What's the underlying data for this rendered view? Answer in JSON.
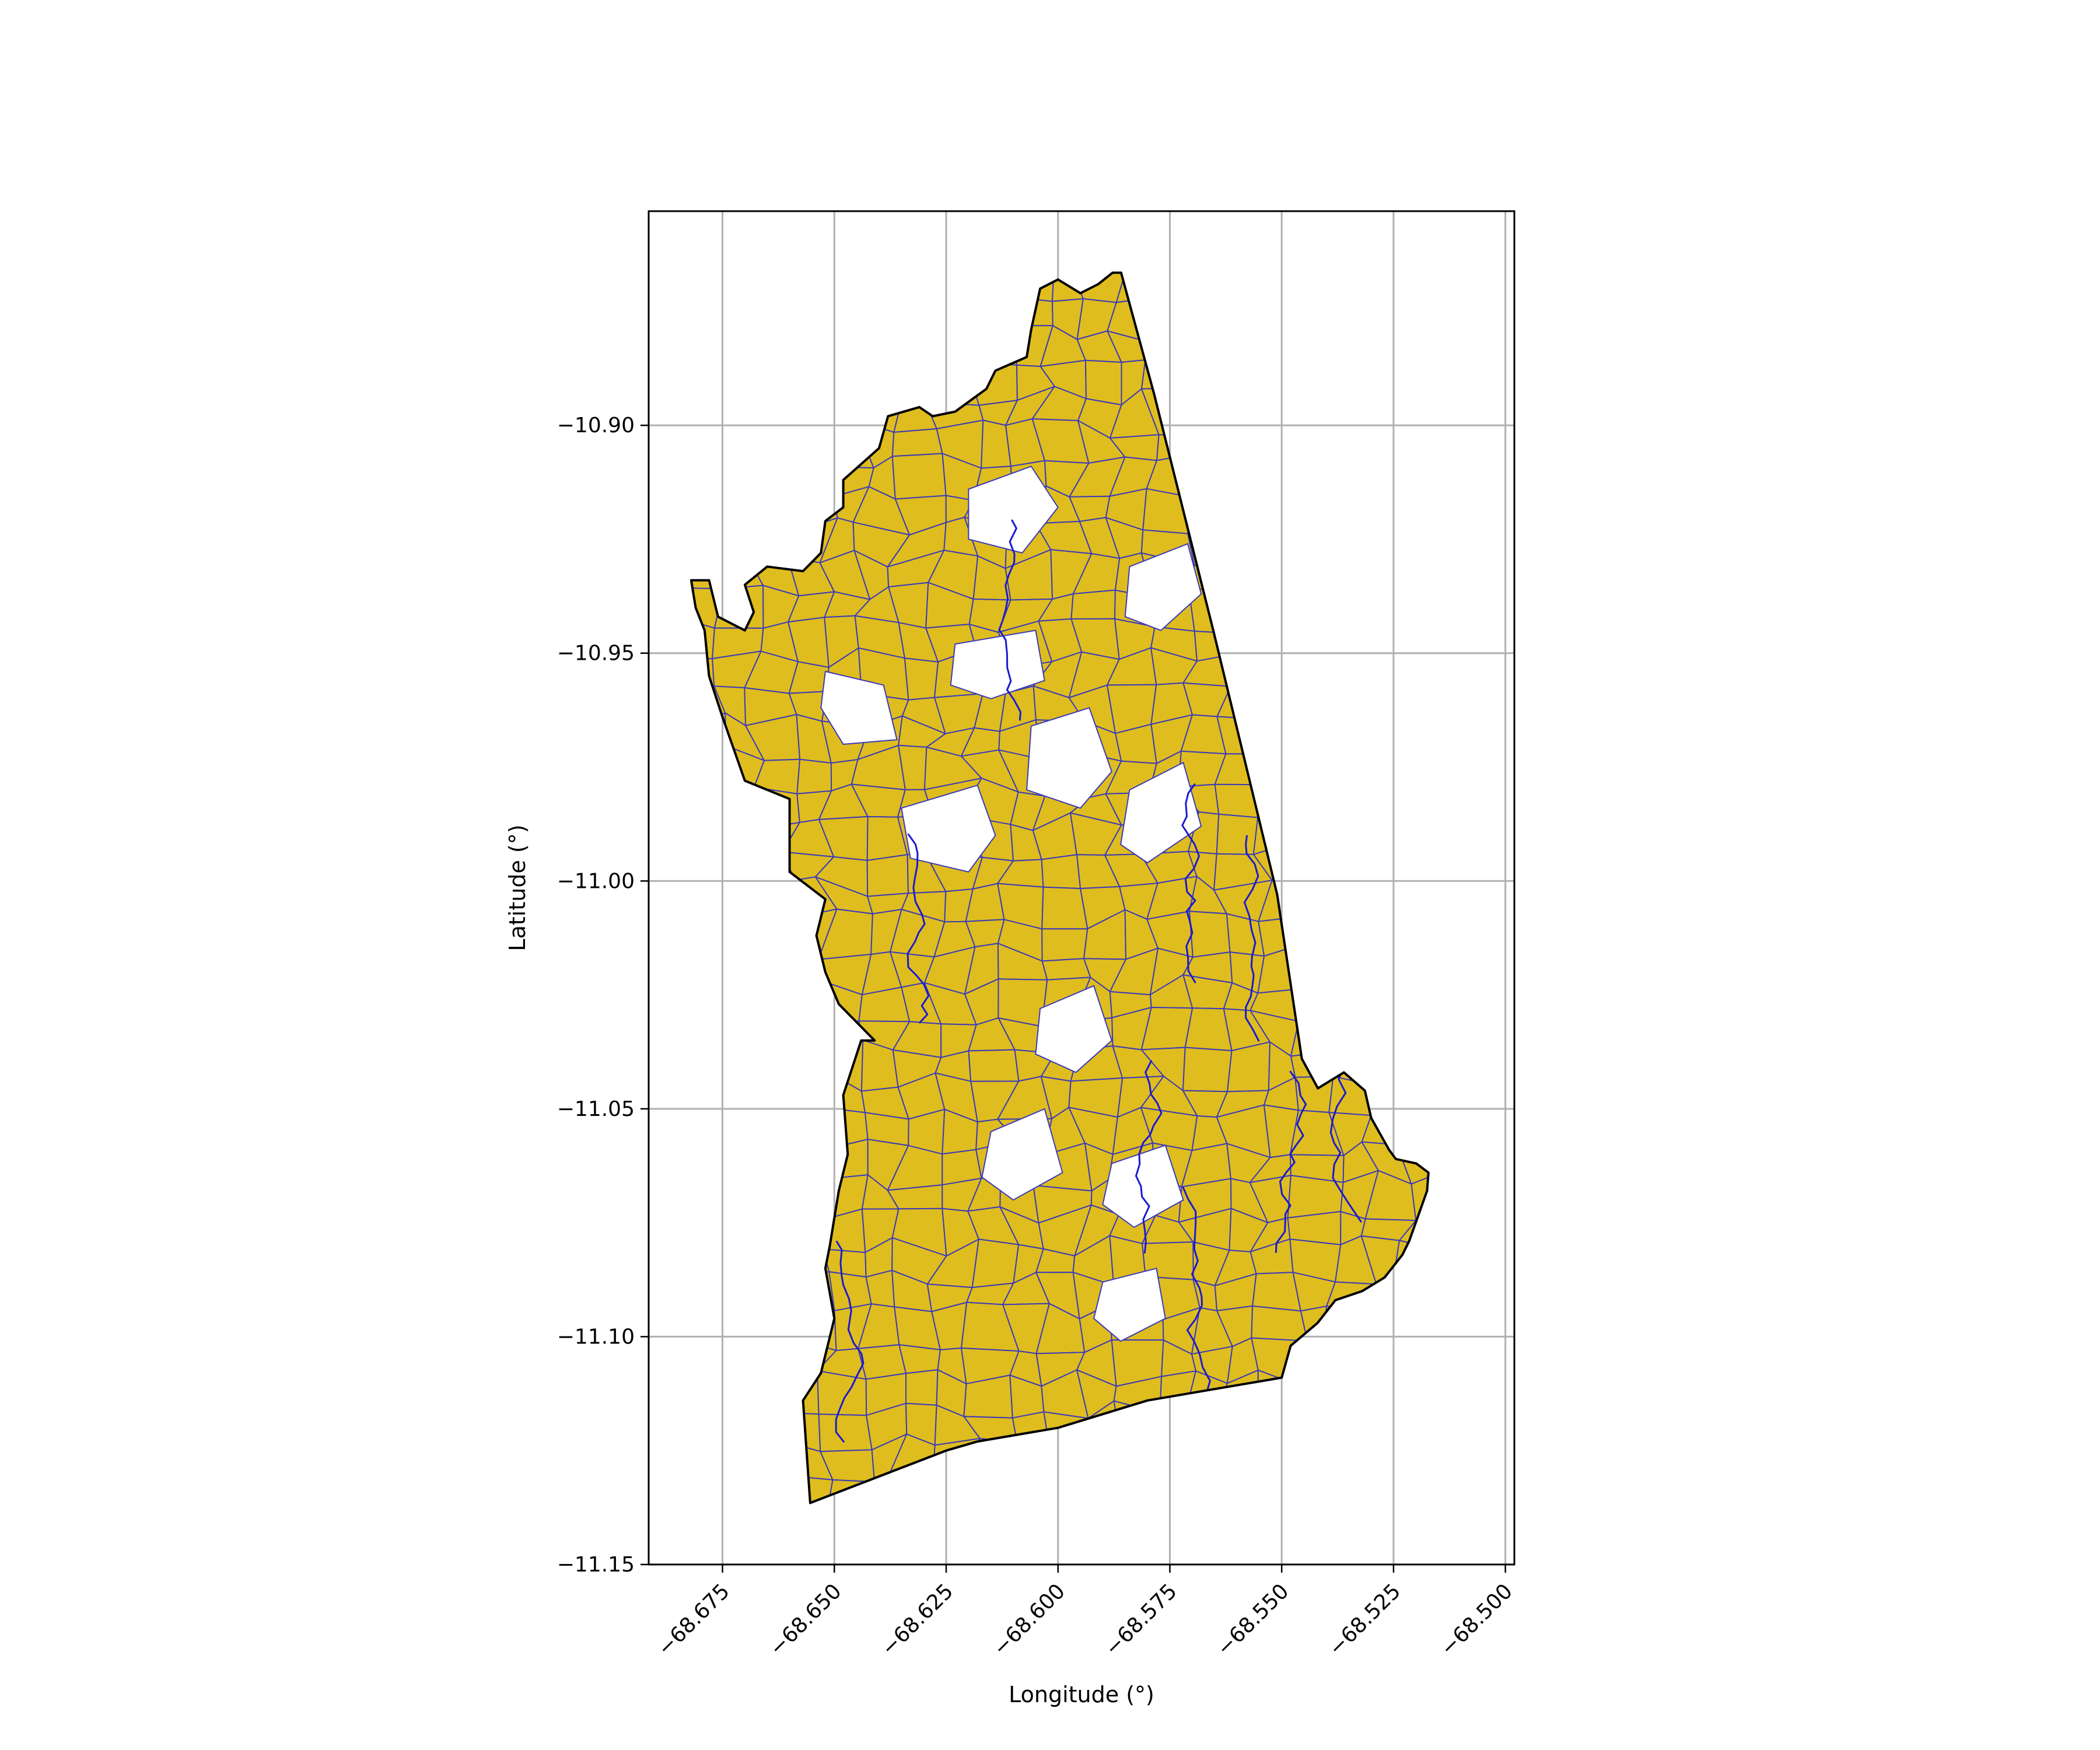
{
  "chart_data": {
    "type": "map",
    "xlabel": "Longitude (°)",
    "ylabel": "Latitude (°)",
    "xlim": [
      -68.6915,
      -68.498
    ],
    "ylim": [
      -11.15,
      -10.853
    ],
    "xticks": [
      -68.675,
      -68.65,
      -68.625,
      -68.6,
      -68.575,
      -68.55,
      -68.525,
      -68.5
    ],
    "xtick_labels": [
      "−68.675",
      "−68.650",
      "−68.625",
      "−68.600",
      "−68.575",
      "−68.550",
      "−68.525",
      "−68.500"
    ],
    "yticks": [
      -10.9,
      -10.95,
      -11.0,
      -11.05,
      -11.1,
      -11.15
    ],
    "ytick_labels": [
      "−10.90",
      "−10.95",
      "−11.00",
      "−11.05",
      "−11.10",
      "−11.15"
    ],
    "grid": true,
    "colors": {
      "parcel_fill": "#dfbd1e",
      "parcel_edge": "#3b3bb8",
      "river": "#1a1ad0",
      "boundary": "#000000",
      "grid": "#b0b0b0"
    },
    "boundary": [
      [
        -68.5878,
        -10.8665
      ],
      [
        -68.5859,
        -10.8665
      ],
      [
        -68.5785,
        -10.8932
      ],
      [
        -68.5653,
        -10.945
      ],
      [
        -68.551,
        -11.003
      ],
      [
        -68.5455,
        -11.039
      ],
      [
        -68.5419,
        -11.0455
      ],
      [
        -68.5361,
        -11.042
      ],
      [
        -68.5314,
        -11.046
      ],
      [
        -68.53,
        -11.052
      ],
      [
        -68.526,
        -11.059
      ],
      [
        -68.5245,
        -11.061
      ],
      [
        -68.5199,
        -11.062
      ],
      [
        -68.5172,
        -11.064
      ],
      [
        -68.5175,
        -11.068
      ],
      [
        -68.5215,
        -11.079
      ],
      [
        -68.523,
        -11.082
      ],
      [
        -68.527,
        -11.087
      ],
      [
        -68.532,
        -11.09
      ],
      [
        -68.538,
        -11.092
      ],
      [
        -68.542,
        -11.097
      ],
      [
        -68.548,
        -11.102
      ],
      [
        -68.55,
        -11.109
      ],
      [
        -68.58,
        -11.114
      ],
      [
        -68.6,
        -11.12
      ],
      [
        -68.618,
        -11.123
      ],
      [
        -68.625,
        -11.125
      ],
      [
        -68.6554,
        -11.1365
      ],
      [
        -68.657,
        -11.114
      ],
      [
        -68.653,
        -11.108
      ],
      [
        -68.65,
        -11.096
      ],
      [
        -68.652,
        -11.085
      ],
      [
        -68.651,
        -11.08
      ],
      [
        -68.649,
        -11.068
      ],
      [
        -68.647,
        -11.06
      ],
      [
        -68.648,
        -11.047
      ],
      [
        -68.644,
        -11.035
      ],
      [
        -68.641,
        -11.035
      ],
      [
        -68.649,
        -11.027
      ],
      [
        -68.652,
        -11.02
      ],
      [
        -68.654,
        -11.012
      ],
      [
        -68.652,
        -11.004
      ],
      [
        -68.66,
        -10.998
      ],
      [
        -68.66,
        -10.982
      ],
      [
        -68.67,
        -10.978
      ],
      [
        -68.675,
        -10.964
      ],
      [
        -68.678,
        -10.955
      ],
      [
        -68.679,
        -10.945
      ],
      [
        -68.681,
        -10.94
      ],
      [
        -68.682,
        -10.934
      ],
      [
        -68.678,
        -10.934
      ],
      [
        -68.676,
        -10.942
      ],
      [
        -68.67,
        -10.945
      ],
      [
        -68.668,
        -10.941
      ],
      [
        -68.67,
        -10.935
      ],
      [
        -68.665,
        -10.931
      ],
      [
        -68.657,
        -10.932
      ],
      [
        -68.653,
        -10.928
      ],
      [
        -68.652,
        -10.921
      ],
      [
        -68.648,
        -10.918
      ],
      [
        -68.648,
        -10.912
      ],
      [
        -68.64,
        -10.905
      ],
      [
        -68.638,
        -10.898
      ],
      [
        -68.631,
        -10.896
      ],
      [
        -68.628,
        -10.898
      ],
      [
        -68.623,
        -10.897
      ],
      [
        -68.616,
        -10.892
      ],
      [
        -68.614,
        -10.888
      ],
      [
        -68.607,
        -10.885
      ],
      [
        -68.606,
        -10.879
      ],
      [
        -68.604,
        -10.87
      ],
      [
        -68.6,
        -10.868
      ],
      [
        -68.595,
        -10.871
      ],
      [
        -68.591,
        -10.869
      ],
      [
        -68.5878,
        -10.8665
      ]
    ],
    "unfilled_areas": [
      [
        [
          -68.652,
          -10.954
        ],
        [
          -68.639,
          -10.957
        ],
        [
          -68.636,
          -10.969
        ],
        [
          -68.648,
          -10.97
        ],
        [
          -68.653,
          -10.962
        ]
      ],
      [
        [
          -68.623,
          -10.948
        ],
        [
          -68.605,
          -10.945
        ],
        [
          -68.603,
          -10.956
        ],
        [
          -68.615,
          -10.96
        ],
        [
          -68.624,
          -10.957
        ]
      ],
      [
        [
          -68.635,
          -10.984
        ],
        [
          -68.618,
          -10.979
        ],
        [
          -68.614,
          -10.99
        ],
        [
          -68.62,
          -10.998
        ],
        [
          -68.633,
          -10.995
        ]
      ],
      [
        [
          -68.606,
          -10.966
        ],
        [
          -68.593,
          -10.962
        ],
        [
          -68.588,
          -10.976
        ],
        [
          -68.595,
          -10.984
        ],
        [
          -68.607,
          -10.98
        ]
      ],
      [
        [
          -68.62,
          -10.914
        ],
        [
          -68.606,
          -10.909
        ],
        [
          -68.6,
          -10.918
        ],
        [
          -68.608,
          -10.928
        ],
        [
          -68.62,
          -10.925
        ]
      ],
      [
        [
          -68.584,
          -10.931
        ],
        [
          -68.571,
          -10.926
        ],
        [
          -68.568,
          -10.937
        ],
        [
          -68.577,
          -10.945
        ],
        [
          -68.585,
          -10.942
        ]
      ],
      [
        [
          -68.584,
          -10.98
        ],
        [
          -68.572,
          -10.974
        ],
        [
          -68.568,
          -10.988
        ],
        [
          -68.58,
          -10.996
        ],
        [
          -68.586,
          -10.992
        ]
      ],
      [
        [
          -68.604,
          -11.028
        ],
        [
          -68.592,
          -11.023
        ],
        [
          -68.588,
          -11.035
        ],
        [
          -68.596,
          -11.042
        ],
        [
          -68.605,
          -11.038
        ]
      ],
      [
        [
          -68.615,
          -11.055
        ],
        [
          -68.603,
          -11.05
        ],
        [
          -68.599,
          -11.064
        ],
        [
          -68.61,
          -11.07
        ],
        [
          -68.617,
          -11.065
        ]
      ],
      [
        [
          -68.588,
          -11.062
        ],
        [
          -68.576,
          -11.058
        ],
        [
          -68.572,
          -11.07
        ],
        [
          -68.583,
          -11.076
        ],
        [
          -68.59,
          -11.071
        ]
      ],
      [
        [
          -68.59,
          -11.088
        ],
        [
          -68.578,
          -11.085
        ],
        [
          -68.576,
          -11.096
        ],
        [
          -68.586,
          -11.101
        ],
        [
          -68.592,
          -11.096
        ]
      ]
    ]
  }
}
